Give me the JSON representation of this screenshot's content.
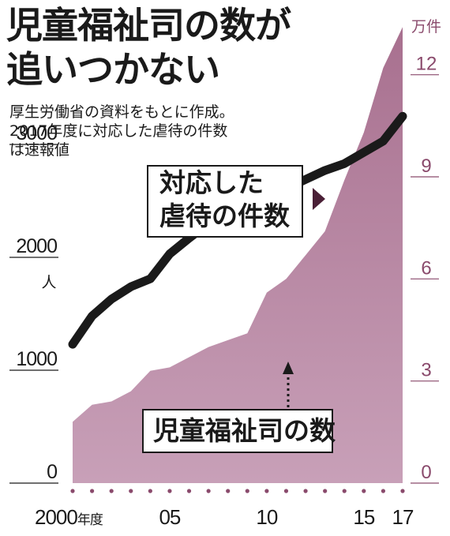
{
  "title_lines": [
    "児童福祉司の数が",
    "追いつかない"
  ],
  "note_lines": [
    "厚生労働省の資料をもとに作成。",
    "2017年度に対応した虐待の件数",
    "は速報値"
  ],
  "callouts": {
    "cases": [
      "対応した",
      "虐待の件数"
    ],
    "offices": "児童福祉司の数"
  },
  "colors": {
    "area_fill": "#a8708f",
    "area_light": "#c8a0b8",
    "line": "#1a1a1a",
    "right_axis_text": "#8a4a6c",
    "left_axis_text": "#1a1a1a"
  },
  "chart_data": {
    "type": "area+line",
    "x": [
      2000,
      2001,
      2002,
      2003,
      2004,
      2005,
      2006,
      2007,
      2008,
      2009,
      2010,
      2011,
      2012,
      2013,
      2014,
      2015,
      2016,
      2017
    ],
    "x_tick_labels": [
      {
        "x": 2000,
        "label": "2000",
        "suffix": "年度"
      },
      {
        "x": 2005,
        "label": "05"
      },
      {
        "x": 2010,
        "label": "10"
      },
      {
        "x": 2015,
        "label": "15"
      },
      {
        "x": 2017,
        "label": "17"
      }
    ],
    "series": [
      {
        "name": "対応した虐待の件数",
        "type": "area",
        "axis": "right",
        "unit": "万件",
        "values": [
          1.8,
          2.3,
          2.4,
          2.7,
          3.3,
          3.4,
          3.7,
          4.0,
          4.2,
          4.4,
          5.6,
          6.0,
          6.7,
          7.4,
          8.9,
          10.3,
          12.2,
          13.4
        ]
      },
      {
        "name": "児童福祉司の数",
        "type": "line",
        "axis": "left",
        "unit": "人",
        "values": [
          1230,
          1480,
          1630,
          1740,
          1810,
          2030,
          2170,
          2300,
          2380,
          2410,
          2480,
          2610,
          2690,
          2770,
          2830,
          2930,
          3030,
          3250
        ]
      }
    ],
    "left_axis": {
      "unit": "人",
      "ylim": [
        0,
        4070
      ],
      "ticks": [
        0,
        1000,
        2000,
        3000
      ],
      "tick_labels": [
        "0",
        "1000",
        "2000",
        "3000"
      ]
    },
    "right_axis": {
      "unit": "万件",
      "ylim": [
        0,
        13.5
      ],
      "ticks": [
        0,
        3,
        6,
        9,
        12
      ],
      "tick_labels": [
        "0",
        "3",
        "6",
        "9",
        "12"
      ]
    }
  }
}
